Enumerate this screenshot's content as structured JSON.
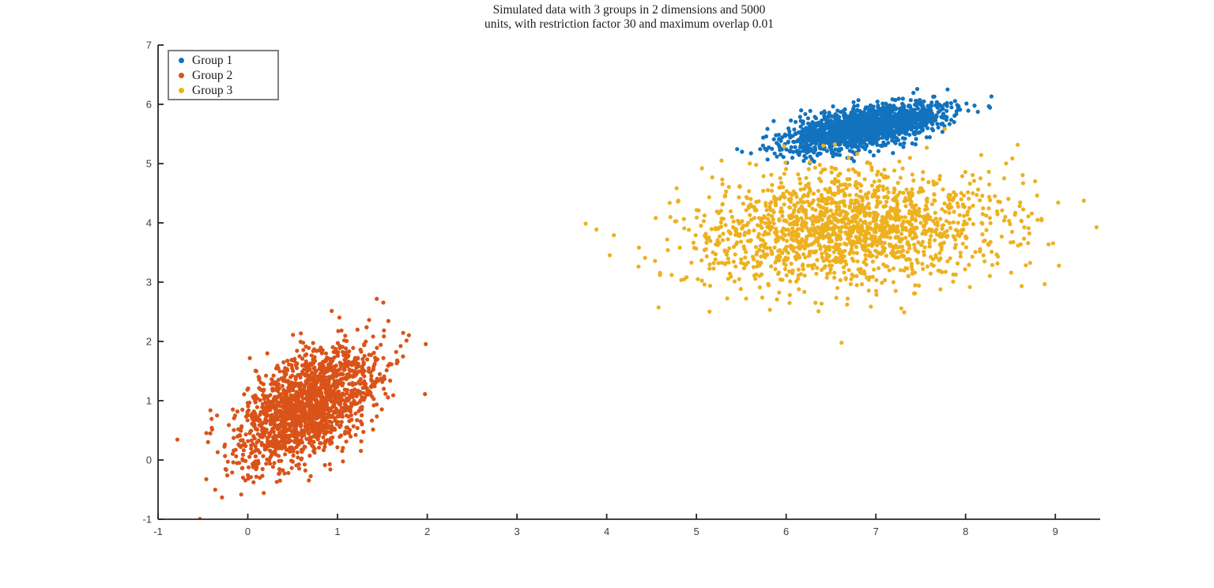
{
  "chart_data": {
    "type": "scatter",
    "title_lines": [
      "Simulated data with 3 groups in 2 dimensions and 5000",
      "units, with restriction factor 30 and maximum overlap 0.01"
    ],
    "xlabel": "",
    "ylabel": "",
    "xlim": [
      -1,
      9.5
    ],
    "ylim": [
      -1,
      7
    ],
    "xticks": [
      -1,
      0,
      1,
      2,
      3,
      4,
      5,
      6,
      7,
      8,
      9
    ],
    "yticks": [
      -1,
      0,
      1,
      2,
      3,
      4,
      5,
      6,
      7
    ],
    "grid": false,
    "legend_position": "top-left",
    "axis_color": "#262626",
    "tick_label_color": "#404040",
    "background_color": "#ffffff",
    "marker_radius": 2.6,
    "total_units": 5000,
    "groups": [
      {
        "name": "Group 1",
        "color": "#1272BD",
        "n": 1667,
        "mean": [
          6.9,
          5.62
        ],
        "std": [
          0.42,
          0.2
        ],
        "corr": 0.55,
        "seed": 101
      },
      {
        "name": "Group 2",
        "color": "#D95319",
        "n": 1667,
        "mean": [
          0.65,
          0.92
        ],
        "std": [
          0.4,
          0.5
        ],
        "corr": 0.55,
        "seed": 202
      },
      {
        "name": "Group 3",
        "color": "#EDB120",
        "n": 1666,
        "mean": [
          6.7,
          3.9
        ],
        "std": [
          0.85,
          0.48
        ],
        "corr": 0.12,
        "seed": 303
      }
    ]
  }
}
